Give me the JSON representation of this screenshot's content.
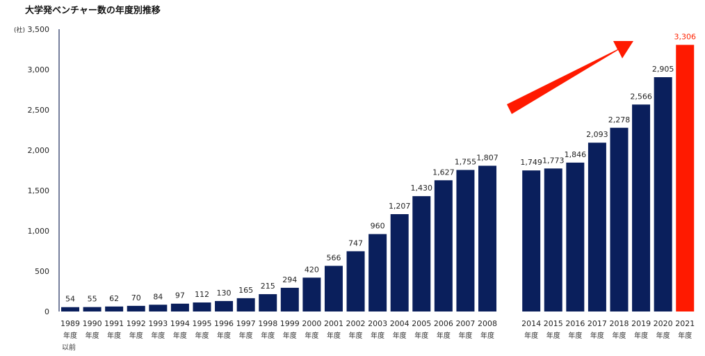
{
  "chart_data": {
    "type": "bar",
    "title": "大学発ベンチャー数の年度別推移",
    "unit_label": "(社)",
    "ylim": [
      0,
      3500
    ],
    "y_ticks": [
      "0",
      "500",
      "1,000",
      "1,500",
      "2,000",
      "2,500",
      "3,000",
      "3,500"
    ],
    "y_tick_values": [
      0,
      500,
      1000,
      1500,
      2000,
      2500,
      3000,
      3500
    ],
    "categories": [
      "1989",
      "1990",
      "1991",
      "1992",
      "1993",
      "1994",
      "1995",
      "1996",
      "1997",
      "1998",
      "1999",
      "2000",
      "2001",
      "2002",
      "2003",
      "2004",
      "2005",
      "2006",
      "2007",
      "2008",
      "2014",
      "2015",
      "2016",
      "2017",
      "2018",
      "2019",
      "2020",
      "2021"
    ],
    "category_suffix": "年度",
    "first_category_note": "以前",
    "values": [
      54,
      55,
      62,
      70,
      84,
      97,
      112,
      130,
      165,
      215,
      294,
      420,
      566,
      747,
      960,
      1207,
      1430,
      1627,
      1755,
      1807,
      1749,
      1773,
      1846,
      2093,
      2278,
      2566,
      2905,
      3306
    ],
    "value_labels": [
      "54",
      "55",
      "62",
      "70",
      "84",
      "97",
      "112",
      "130",
      "165",
      "215",
      "294",
      "420",
      "566",
      "747",
      "960",
      "1,207",
      "1,430",
      "1,627",
      "1,755",
      "1,807",
      "1,749",
      "1,773",
      "1,846",
      "2,093",
      "2,278",
      "2,566",
      "2,905",
      "3,306"
    ],
    "highlight_category": "2021",
    "gap_after_category": "2008",
    "colors": {
      "bar": "#0a1f5c",
      "highlight": "#ff1a00",
      "arrow": "#ff1a00",
      "axis": "#1a2a5a"
    },
    "annotation": "upward-trend-arrow"
  }
}
